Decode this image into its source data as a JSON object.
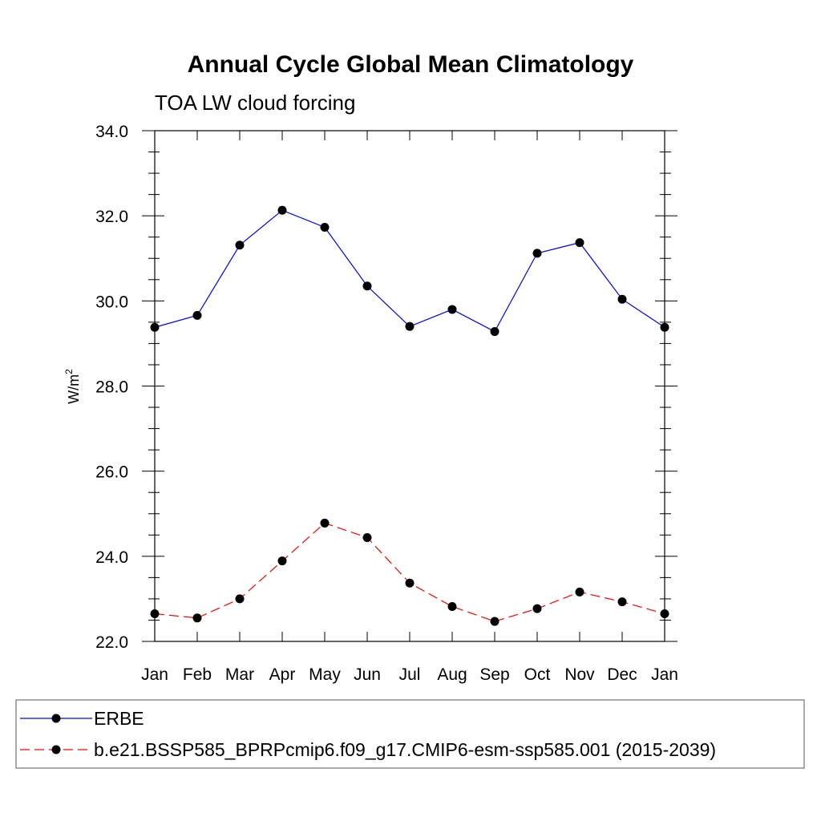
{
  "chart_data": {
    "type": "line",
    "title": "Annual Cycle Global Mean Climatology",
    "subtitle": "TOA LW cloud forcing",
    "xlabel": "",
    "ylabel_base": "W/m",
    "ylabel_sup": "2",
    "categories": [
      "Jan",
      "Feb",
      "Mar",
      "Apr",
      "May",
      "Jun",
      "Jul",
      "Aug",
      "Sep",
      "Oct",
      "Nov",
      "Dec",
      "Jan"
    ],
    "ylim": [
      22.0,
      34.0
    ],
    "yticks": [
      "22.0",
      "24.0",
      "26.0",
      "28.0",
      "30.0",
      "32.0",
      "34.0"
    ],
    "series": [
      {
        "name": "ERBE",
        "color": "#0000ff",
        "dash": "solid",
        "values": [
          29.38,
          29.66,
          31.31,
          32.13,
          31.73,
          30.35,
          29.4,
          29.8,
          29.28,
          31.12,
          31.37,
          30.04,
          29.38
        ]
      },
      {
        "name": "b.e21.BSSP585_BPRPcmip6.f09_g17.CMIP6-esm-ssp585.001 (2015-2039)",
        "color": "#ff0000",
        "dash": "dashed",
        "values": [
          22.65,
          22.55,
          23.0,
          23.89,
          24.78,
          24.44,
          23.37,
          22.82,
          22.47,
          22.77,
          23.16,
          22.93,
          22.65
        ]
      }
    ],
    "legend_position": "bottom"
  }
}
